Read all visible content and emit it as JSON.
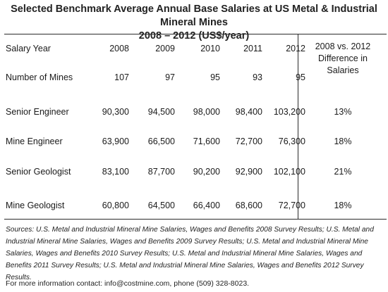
{
  "title": {
    "line1": "Selected Benchmark Average Annual Base Salaries at US Metal & Industrial Mineral Mines",
    "line2": "2008 – 2012  (US$/year)"
  },
  "table": {
    "header": {
      "label": "Salary Year",
      "years": [
        "2008",
        "2009",
        "2010",
        "2011",
        "2012"
      ],
      "diff_line1": "2008 vs. 2012",
      "diff_line2": "Difference in",
      "diff_line3": "Salaries"
    },
    "mines": {
      "label": "Number of Mines",
      "values": [
        "107",
        "97",
        "95",
        "93",
        "95"
      ]
    },
    "rows": [
      {
        "label": "Senior Engineer",
        "values": [
          "90,300",
          "94,500",
          "98,000",
          "98,400",
          "103,200"
        ],
        "diff": "13%"
      },
      {
        "label": "Mine Engineer",
        "values": [
          "63,900",
          "66,500",
          "71,600",
          "72,700",
          "76,300"
        ],
        "diff": "18%"
      },
      {
        "label": "Senior Geologist",
        "values": [
          "83,100",
          "87,700",
          "90,200",
          "92,900",
          "102,100"
        ],
        "diff": "21%"
      },
      {
        "label": "Mine Geologist",
        "values": [
          "60,800",
          "64,500",
          "66,400",
          "68,600",
          "72,700"
        ],
        "diff": "18%"
      }
    ]
  },
  "sources": "Sources:  U.S. Metal and Industrial Mineral Mine Salaries, Wages and Benefits 2008 Survey Results; U.S. Metal and Industrial Mineral Mine Salaries, Wages and Benefits 2009 Survey Results; U.S. Metal and Industrial Mineral Mine Salaries, Wages and Benefits 2010 Survey Results; U.S. Metal and Industrial Mineral Mine Salaries, Wages and Benefits 2011 Survey Results; U.S. Metal and Industrial Mineral Mine Salaries, Wages and Benefits 2012 Survey Results.",
  "contact": "For more information contact: info@costmine.com, phone (509) 328-8023."
}
